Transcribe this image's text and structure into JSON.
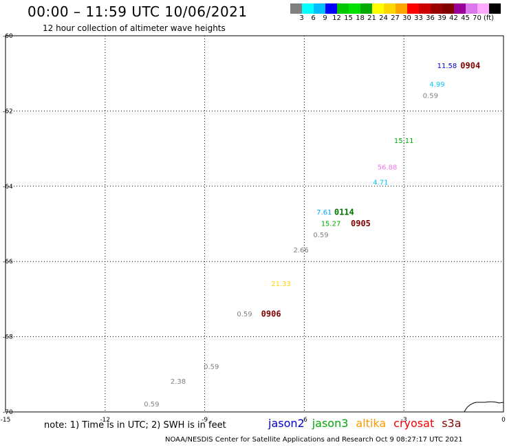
{
  "header": {
    "title": "00:00 – 11:59 UTC 10/06/2021",
    "subtitle": "12 hour collection of altimeter wave heights"
  },
  "colorbar": {
    "colors": [
      "#808080",
      "#00ffff",
      "#00bfff",
      "#0000ff",
      "#00c800",
      "#00e000",
      "#00aa00",
      "#ffff00",
      "#ffd700",
      "#ffa500",
      "#ff0000",
      "#cc0000",
      "#990000",
      "#800000",
      "#990099",
      "#dd77ee",
      "#ffaaff",
      "#000000"
    ],
    "labels": [
      "3",
      "6",
      "9",
      "12",
      "15",
      "18",
      "21",
      "24",
      "27",
      "30",
      "33",
      "36",
      "39",
      "42",
      "45",
      "70",
      "(ft)"
    ]
  },
  "map": {
    "lon_range": [
      -15,
      0
    ],
    "lat_range": [
      -70,
      -60
    ],
    "lon_ticks": [
      -15,
      -12,
      -9,
      -6,
      -3,
      0
    ],
    "lat_ticks": [
      -60,
      -62,
      -64,
      -66,
      -68,
      -70
    ],
    "lon_tick_labels": [
      "-15",
      "-12",
      "-9",
      "-6",
      "-3",
      "0"
    ],
    "lat_tick_labels": [
      "-60",
      "-62",
      "-64",
      "-66",
      "-68",
      "-70"
    ],
    "grid": "dotted"
  },
  "observations": [
    {
      "lon": -1.7,
      "lat": -60.8,
      "text": "11.58",
      "color": "#0000cc"
    },
    {
      "lon": -2.0,
      "lat": -61.3,
      "text": "4.99",
      "color": "#00c8ff"
    },
    {
      "lon": -2.2,
      "lat": -61.6,
      "text": "0.59",
      "color": "#808080"
    },
    {
      "lon": -3.0,
      "lat": -62.8,
      "text": "15.11",
      "color": "#00aa00"
    },
    {
      "lon": -3.5,
      "lat": -63.5,
      "text": "56.88",
      "color": "#ee77ee"
    },
    {
      "lon": -3.7,
      "lat": -63.9,
      "text": "4.71",
      "color": "#00c8ff"
    },
    {
      "lon": -5.4,
      "lat": -64.7,
      "text": "7.61",
      "color": "#00aaff"
    },
    {
      "lon": -5.2,
      "lat": -65.0,
      "text": "15.27",
      "color": "#00aa00"
    },
    {
      "lon": -5.5,
      "lat": -65.3,
      "text": "0.59",
      "color": "#808080"
    },
    {
      "lon": -6.1,
      "lat": -65.7,
      "text": "2.66",
      "color": "#808080"
    },
    {
      "lon": -6.7,
      "lat": -66.6,
      "text": "21.33",
      "color": "#ffd700"
    },
    {
      "lon": -7.8,
      "lat": -67.4,
      "text": "0.59",
      "color": "#808080"
    },
    {
      "lon": -8.8,
      "lat": -68.8,
      "text": "0.59",
      "color": "#808080"
    },
    {
      "lon": -9.8,
      "lat": -69.2,
      "text": "2.38",
      "color": "#808080"
    },
    {
      "lon": -10.6,
      "lat": -69.8,
      "text": "0.59",
      "color": "#808080"
    }
  ],
  "pass_times": [
    {
      "lon": -1.0,
      "lat": -60.8,
      "text": "0904",
      "color": "#800000"
    },
    {
      "lon": -4.8,
      "lat": -64.7,
      "text": "0114",
      "color": "#007700"
    },
    {
      "lon": -4.3,
      "lat": -65.0,
      "text": "0905",
      "color": "#800000"
    },
    {
      "lon": -7.0,
      "lat": -67.4,
      "text": "0906",
      "color": "#800000"
    }
  ],
  "footer": {
    "note": "note: 1) Time is in UTC; 2) SWH is in feet",
    "credit": "NOAA/NESDIS Center for Satellite Applications and Research   Oct 9 08:27:17 UTC 2021"
  },
  "legend": [
    {
      "name": "jason2",
      "color": "#0000cc"
    },
    {
      "name": "jason3",
      "color": "#00aa00"
    },
    {
      "name": "altika",
      "color": "#ff9900"
    },
    {
      "name": "cryosat",
      "color": "#ee0000"
    },
    {
      "name": "s3a",
      "color": "#800000"
    }
  ]
}
